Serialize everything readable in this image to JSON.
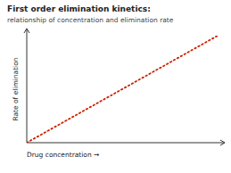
{
  "chart_data": {
    "type": "line",
    "title": "First order elimination kinetics:",
    "subtitle": "relationship of concentration and elimination rate",
    "x_label": "Drug concentration →",
    "y_label": "Rate of elimination",
    "x": [
      0.0,
      1.0
    ],
    "series": [
      {
        "color": "#cc2200",
        "line_style": "dotted",
        "values": [
          0.0,
          1.0
        ]
      }
    ],
    "xlim": [
      0,
      1
    ],
    "ylim": [
      0,
      1
    ],
    "tick_labels": false
  }
}
